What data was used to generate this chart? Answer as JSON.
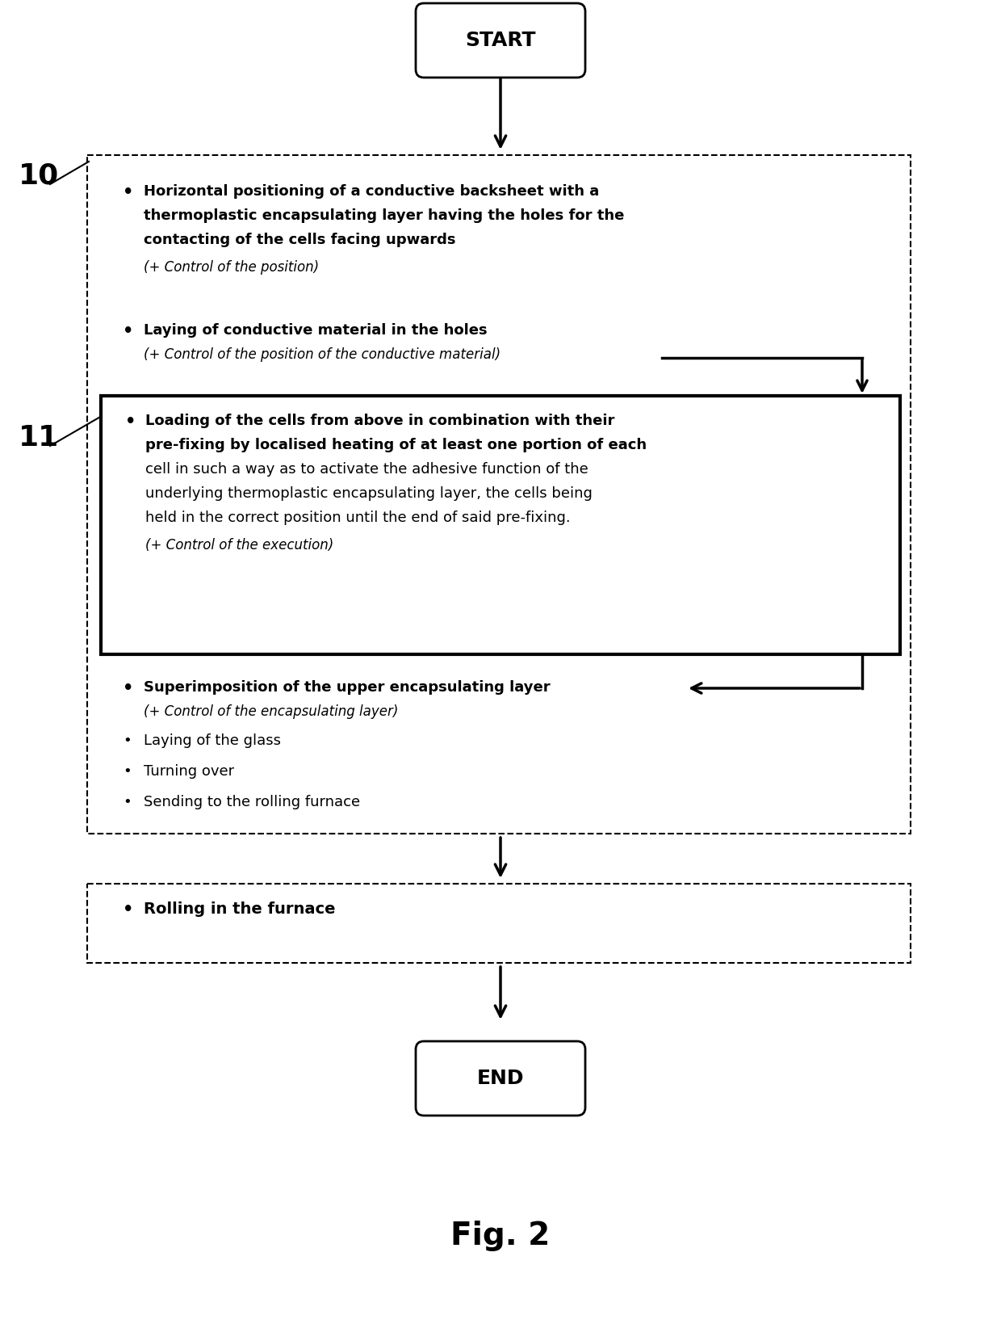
{
  "bg_color": "#ffffff",
  "start_label": "START",
  "end_label": "END",
  "fig_label": "Fig. 2",
  "label_10": "10",
  "label_11": "11",
  "bullet1_l1": "Horizontal positioning of a conductive backsheet with a",
  "bullet1_l2": "thermoplastic encapsulating layer having the holes for the",
  "bullet1_l3": "contacting of the cells facing upwards",
  "bullet1_ctrl": "(+ Control of the position)",
  "bullet2_main": "Laying of conductive material in the holes",
  "bullet2_ctrl": "(+ Control of the position of the conductive material)",
  "inner_l1": "Loading of the cells from above in combination with their",
  "inner_l2": "pre-fixing by localised heating of at least one portion of each",
  "inner_l3": "cell in such a way as to activate the adhesive function of the",
  "inner_l4": "underlying thermoplastic encapsulating layer, the cells being",
  "inner_l5": "held in the correct position until the end of said pre-fixing.",
  "inner_ctrl": "(+ Control of the execution)",
  "bullet3_main": "Superimposition of the upper encapsulating layer",
  "bullet3_ctrl": "(+ Control of the encapsulating layer)",
  "bullet4": "Laying of the glass",
  "bullet5": "Turning over",
  "bullet6": "Sending to the rolling furnace",
  "bottom_bullet": "Rolling in the furnace"
}
